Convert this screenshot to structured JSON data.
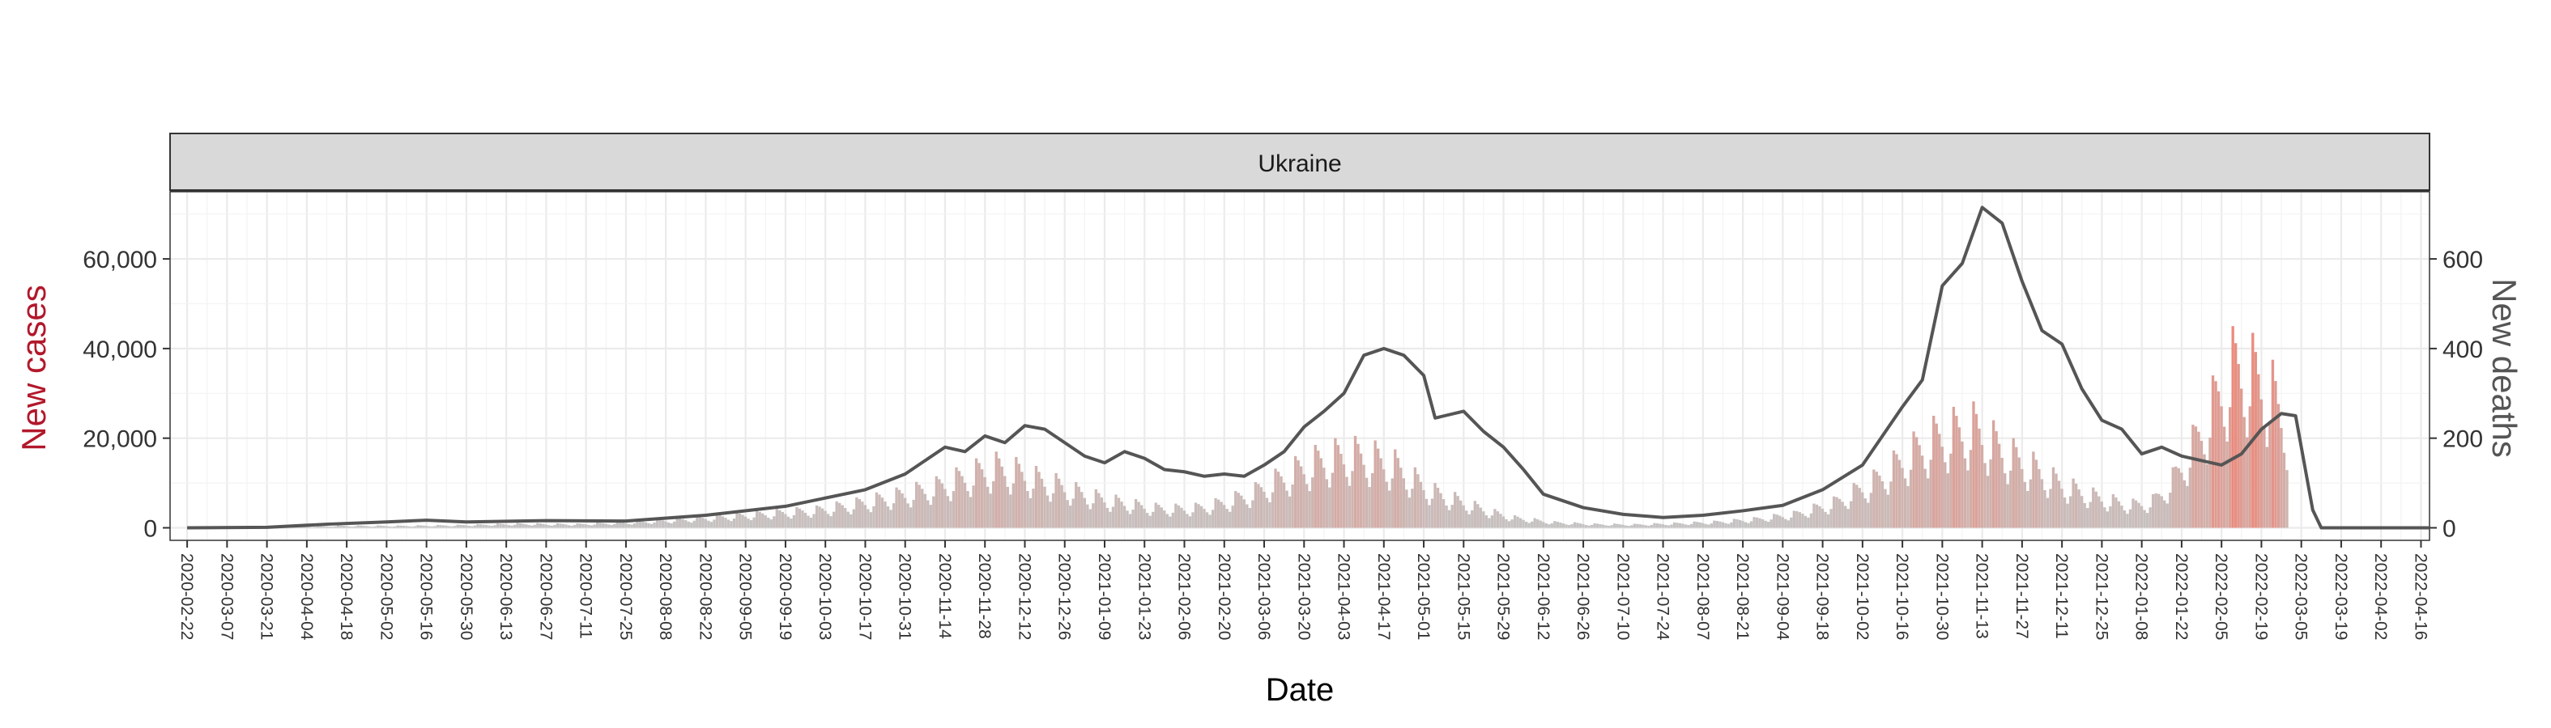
{
  "chart_data": {
    "type": "bar",
    "panel_title": "Ukraine",
    "xlabel": "Date",
    "ylabel_left": "New cases",
    "ylabel_right": "New deaths",
    "colors": {
      "left_axis": "#b2182b",
      "right_axis": "#555555",
      "bar_low": "#c4c4c4",
      "bar_high": "#ea8a7c",
      "line": "#555555"
    },
    "x_range": [
      "2020-02-16",
      "2022-04-19"
    ],
    "y_left": {
      "range": [
        -2800,
        75000
      ],
      "ticks": [
        0,
        20000,
        40000,
        60000
      ],
      "tick_labels": [
        "0",
        "20,000",
        "40,000",
        "60,000"
      ]
    },
    "y_right": {
      "range": [
        -28,
        750
      ],
      "ticks": [
        0,
        200,
        400,
        600
      ],
      "tick_labels": [
        "0",
        "200",
        "400",
        "600"
      ]
    },
    "x_ticks": [
      "2020-02-22",
      "2020-03-07",
      "2020-03-21",
      "2020-04-04",
      "2020-04-18",
      "2020-05-02",
      "2020-05-16",
      "2020-05-30",
      "2020-06-13",
      "2020-06-27",
      "2020-07-11",
      "2020-07-25",
      "2020-08-08",
      "2020-08-22",
      "2020-09-05",
      "2020-09-19",
      "2020-10-03",
      "2020-10-17",
      "2020-10-31",
      "2020-11-14",
      "2020-11-28",
      "2020-12-12",
      "2020-12-26",
      "2021-01-09",
      "2021-01-23",
      "2021-02-06",
      "2021-02-20",
      "2021-03-06",
      "2021-03-20",
      "2021-04-03",
      "2021-04-17",
      "2021-05-01",
      "2021-05-15",
      "2021-05-29",
      "2021-06-12",
      "2021-06-26",
      "2021-07-10",
      "2021-07-24",
      "2021-08-07",
      "2021-08-21",
      "2021-09-04",
      "2021-09-18",
      "2021-10-02",
      "2021-10-16",
      "2021-10-30",
      "2021-11-13",
      "2021-11-27",
      "2021-12-11",
      "2021-12-25",
      "2022-01-08",
      "2022-01-22",
      "2022-02-05",
      "2022-02-19",
      "2022-03-05",
      "2022-03-19",
      "2022-04-02",
      "2022-04-16"
    ],
    "cases_weekly_peaks": [
      [
        "2020-03-25",
        100
      ],
      [
        "2020-04-15",
        550
      ],
      [
        "2020-05-06",
        520
      ],
      [
        "2020-05-27",
        700
      ],
      [
        "2020-06-17",
        1100
      ],
      [
        "2020-07-08",
        1000
      ],
      [
        "2020-07-29",
        1600
      ],
      [
        "2020-08-19",
        2600
      ],
      [
        "2020-09-09",
        3800
      ],
      [
        "2020-09-30",
        5000
      ],
      [
        "2020-10-14",
        6800
      ],
      [
        "2020-10-28",
        9000
      ],
      [
        "2020-11-11",
        11500
      ],
      [
        "2020-11-25",
        15500
      ],
      [
        "2020-12-02",
        17000
      ],
      [
        "2020-12-09",
        15800
      ],
      [
        "2020-12-16",
        13800
      ],
      [
        "2020-12-23",
        12200
      ],
      [
        "2020-12-30",
        10200
      ],
      [
        "2021-01-06",
        8600
      ],
      [
        "2021-01-13",
        7400
      ],
      [
        "2021-01-20",
        6400
      ],
      [
        "2021-01-27",
        5600
      ],
      [
        "2021-02-03",
        5400
      ],
      [
        "2021-02-10",
        5600
      ],
      [
        "2021-02-17",
        6600
      ],
      [
        "2021-02-24",
        8200
      ],
      [
        "2021-03-03",
        10200
      ],
      [
        "2021-03-10",
        13200
      ],
      [
        "2021-03-17",
        16000
      ],
      [
        "2021-03-24",
        18500
      ],
      [
        "2021-03-31",
        20000
      ],
      [
        "2021-04-07",
        20500
      ],
      [
        "2021-04-14",
        19500
      ],
      [
        "2021-04-21",
        17500
      ],
      [
        "2021-04-28",
        13500
      ],
      [
        "2021-05-05",
        10000
      ],
      [
        "2021-05-12",
        8000
      ],
      [
        "2021-05-19",
        6000
      ],
      [
        "2021-05-26",
        4200
      ],
      [
        "2021-06-02",
        2800
      ],
      [
        "2021-06-16",
        1500
      ],
      [
        "2021-06-30",
        1000
      ],
      [
        "2021-07-14",
        900
      ],
      [
        "2021-07-28",
        1200
      ],
      [
        "2021-08-11",
        1600
      ],
      [
        "2021-08-25",
        2400
      ],
      [
        "2021-09-08",
        3800
      ],
      [
        "2021-09-22",
        7000
      ],
      [
        "2021-10-06",
        13000
      ],
      [
        "2021-10-20",
        21500
      ],
      [
        "2021-10-27",
        25000
      ],
      [
        "2021-11-03",
        27000
      ],
      [
        "2021-11-10",
        28200
      ],
      [
        "2021-11-17",
        24000
      ],
      [
        "2021-11-24",
        20000
      ],
      [
        "2021-12-01",
        17000
      ],
      [
        "2021-12-08",
        13500
      ],
      [
        "2021-12-15",
        11000
      ],
      [
        "2021-12-22",
        9000
      ],
      [
        "2021-12-29",
        7500
      ],
      [
        "2022-01-05",
        6500
      ],
      [
        "2022-01-12",
        7500
      ],
      [
        "2022-01-19",
        13500
      ],
      [
        "2022-01-26",
        23000
      ],
      [
        "2022-02-02",
        34000
      ],
      [
        "2022-02-09",
        45000
      ],
      [
        "2022-02-16",
        43500
      ],
      [
        "2022-02-23",
        37500
      ],
      [
        "2022-02-28",
        28000
      ]
    ],
    "deaths_7day_avg": [
      [
        "2020-02-22",
        0
      ],
      [
        "2020-03-21",
        1
      ],
      [
        "2020-04-11",
        8
      ],
      [
        "2020-05-02",
        13
      ],
      [
        "2020-05-16",
        17
      ],
      [
        "2020-05-30",
        13
      ],
      [
        "2020-06-27",
        16
      ],
      [
        "2020-07-25",
        15
      ],
      [
        "2020-08-22",
        28
      ],
      [
        "2020-09-19",
        48
      ],
      [
        "2020-10-17",
        85
      ],
      [
        "2020-10-31",
        120
      ],
      [
        "2020-11-14",
        180
      ],
      [
        "2020-11-21",
        170
      ],
      [
        "2020-11-28",
        205
      ],
      [
        "2020-12-05",
        190
      ],
      [
        "2020-12-12",
        228
      ],
      [
        "2020-12-19",
        220
      ],
      [
        "2020-12-26",
        190
      ],
      [
        "2021-01-02",
        160
      ],
      [
        "2021-01-09",
        145
      ],
      [
        "2021-01-16",
        170
      ],
      [
        "2021-01-23",
        155
      ],
      [
        "2021-01-30",
        130
      ],
      [
        "2021-02-06",
        125
      ],
      [
        "2021-02-13",
        115
      ],
      [
        "2021-02-20",
        120
      ],
      [
        "2021-02-27",
        115
      ],
      [
        "2021-03-06",
        140
      ],
      [
        "2021-03-13",
        170
      ],
      [
        "2021-03-20",
        225
      ],
      [
        "2021-03-27",
        260
      ],
      [
        "2021-04-03",
        300
      ],
      [
        "2021-04-10",
        385
      ],
      [
        "2021-04-17",
        400
      ],
      [
        "2021-04-24",
        385
      ],
      [
        "2021-05-01",
        340
      ],
      [
        "2021-05-05",
        245
      ],
      [
        "2021-05-15",
        260
      ],
      [
        "2021-05-22",
        215
      ],
      [
        "2021-05-29",
        180
      ],
      [
        "2021-06-05",
        130
      ],
      [
        "2021-06-12",
        75
      ],
      [
        "2021-06-26",
        45
      ],
      [
        "2021-07-10",
        30
      ],
      [
        "2021-07-24",
        23
      ],
      [
        "2021-08-07",
        28
      ],
      [
        "2021-08-21",
        38
      ],
      [
        "2021-09-04",
        50
      ],
      [
        "2021-09-18",
        85
      ],
      [
        "2021-10-02",
        140
      ],
      [
        "2021-10-16",
        270
      ],
      [
        "2021-10-23",
        330
      ],
      [
        "2021-10-30",
        540
      ],
      [
        "2021-11-06",
        590
      ],
      [
        "2021-11-13",
        715
      ],
      [
        "2021-11-20",
        680
      ],
      [
        "2021-11-27",
        550
      ],
      [
        "2021-12-04",
        440
      ],
      [
        "2021-12-11",
        410
      ],
      [
        "2021-12-18",
        310
      ],
      [
        "2021-12-25",
        240
      ],
      [
        "2022-01-01",
        220
      ],
      [
        "2022-01-08",
        165
      ],
      [
        "2022-01-15",
        180
      ],
      [
        "2022-01-22",
        160
      ],
      [
        "2022-01-29",
        150
      ],
      [
        "2022-02-05",
        140
      ],
      [
        "2022-02-12",
        165
      ],
      [
        "2022-02-19",
        220
      ],
      [
        "2022-02-26",
        255
      ],
      [
        "2022-03-03",
        250
      ],
      [
        "2022-03-09",
        40
      ],
      [
        "2022-03-12",
        0
      ],
      [
        "2022-04-19",
        0
      ]
    ]
  }
}
